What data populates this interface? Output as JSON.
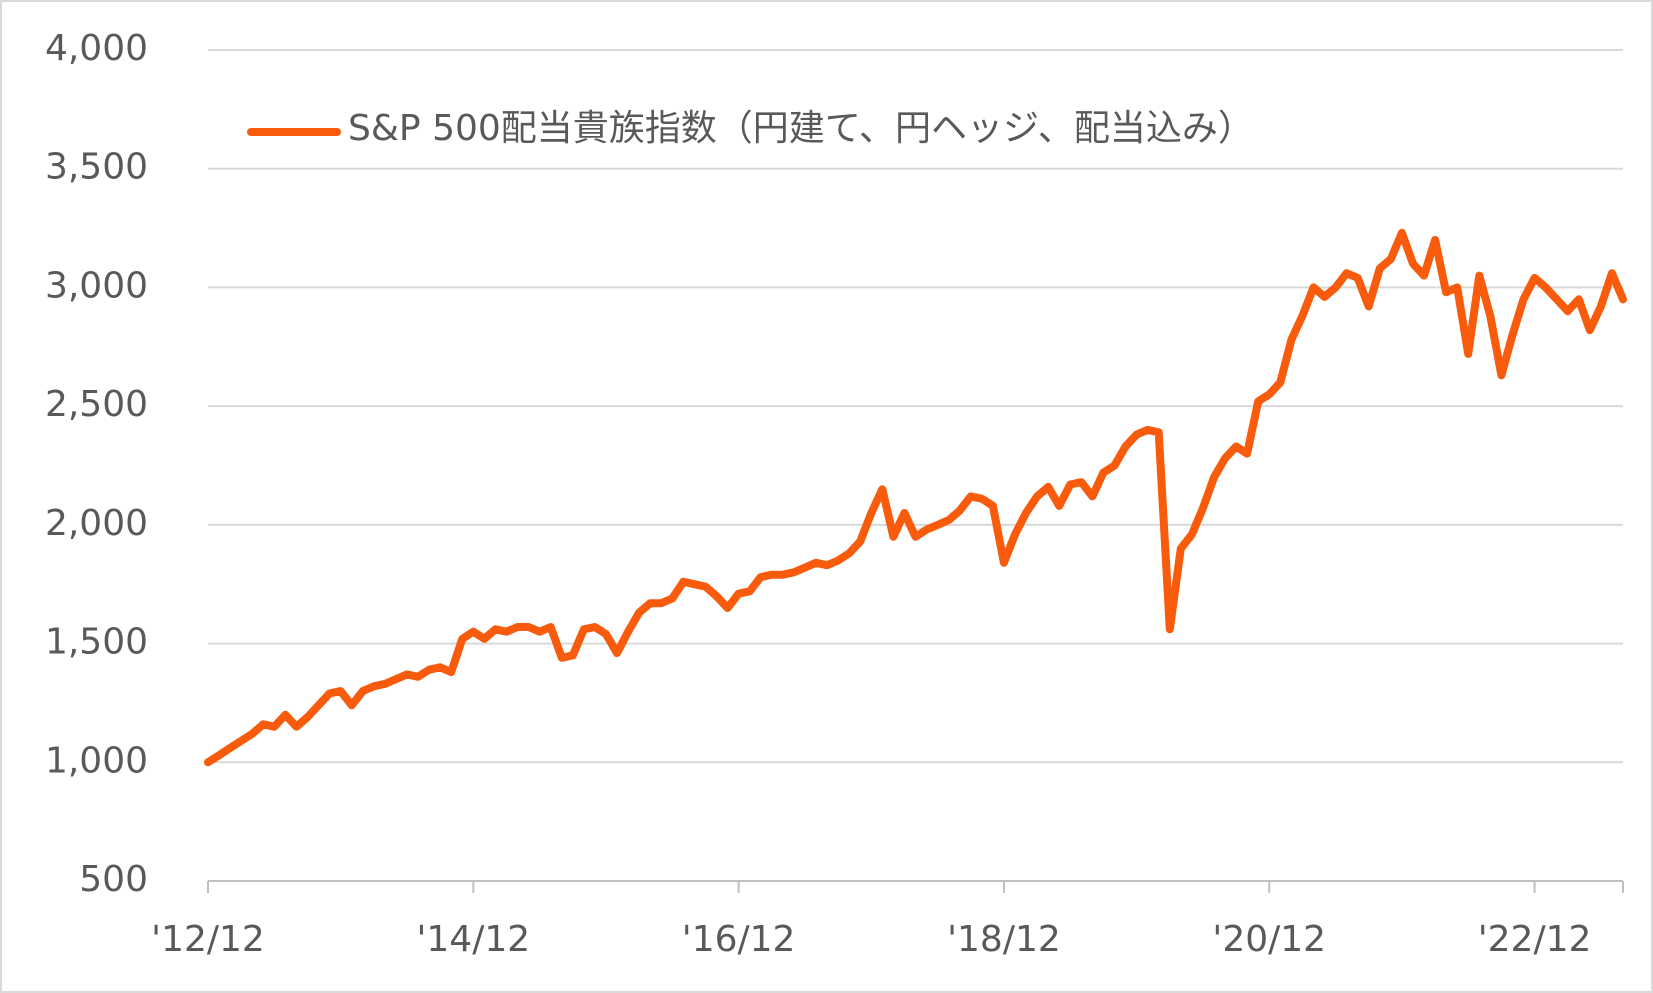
{
  "chart_data": {
    "type": "line",
    "categories": [
      "'12/12",
      null,
      null,
      null,
      null,
      null,
      null,
      null,
      null,
      null,
      null,
      null,
      null,
      null,
      null,
      null,
      null,
      null,
      null,
      null,
      null,
      null,
      null,
      null,
      "'14/12",
      null,
      null,
      null,
      null,
      null,
      null,
      null,
      null,
      null,
      null,
      null,
      null,
      null,
      null,
      null,
      null,
      null,
      null,
      null,
      null,
      null,
      null,
      null,
      "'16/12",
      null,
      null,
      null,
      null,
      null,
      null,
      null,
      null,
      null,
      null,
      null,
      null,
      null,
      null,
      null,
      null,
      null,
      null,
      null,
      null,
      null,
      null,
      null,
      "'18/12",
      null,
      null,
      null,
      null,
      null,
      null,
      null,
      null,
      null,
      null,
      null,
      null,
      null,
      null,
      null,
      null,
      null,
      null,
      null,
      null,
      null,
      null,
      null,
      "'20/12",
      null,
      null,
      null,
      null,
      null,
      null,
      null,
      null,
      null,
      null,
      null,
      null,
      null,
      null,
      null,
      null,
      null,
      null,
      null,
      null,
      null,
      null,
      null,
      "'22/12",
      null,
      null,
      null,
      null,
      null,
      null,
      null,
      null
    ],
    "series": [
      {
        "name": "S&P 500配当貴族指数（円建て、円ヘッジ、配当込み）",
        "color": "#f95b0c",
        "values": [
          1000,
          1030,
          1060,
          1090,
          1120,
          1160,
          1150,
          1200,
          1150,
          1190,
          1240,
          1290,
          1300,
          1240,
          1300,
          1320,
          1330,
          1350,
          1370,
          1360,
          1390,
          1400,
          1380,
          1520,
          1550,
          1520,
          1560,
          1550,
          1570,
          1570,
          1550,
          1570,
          1440,
          1450,
          1560,
          1570,
          1540,
          1460,
          1550,
          1630,
          1670,
          1670,
          1690,
          1760,
          1750,
          1740,
          1700,
          1650,
          1710,
          1720,
          1780,
          1790,
          1790,
          1800,
          1820,
          1840,
          1830,
          1850,
          1880,
          1930,
          2050,
          2150,
          1950,
          2050,
          1950,
          1980,
          2000,
          2020,
          2060,
          2120,
          2110,
          2080,
          1840,
          1960,
          2050,
          2120,
          2160,
          2080,
          2170,
          2180,
          2120,
          2220,
          2250,
          2330,
          2380,
          2400,
          2390,
          1560,
          1900,
          1960,
          2070,
          2200,
          2280,
          2330,
          2300,
          2520,
          2550,
          2600,
          2780,
          2880,
          3000,
          2960,
          3000,
          3060,
          3040,
          2920,
          3080,
          3120,
          3230,
          3100,
          3050,
          3200,
          2980,
          3000,
          2720,
          3050,
          2880,
          2630,
          2800,
          2950,
          3040,
          3000,
          2950,
          2900,
          2950,
          2820,
          2920,
          3060,
          2950
        ]
      }
    ],
    "ylim": [
      500,
      4000
    ],
    "yticks": [
      {
        "value": 500,
        "label": "500"
      },
      {
        "value": 1000,
        "label": "1,000"
      },
      {
        "value": 1500,
        "label": "1,500"
      },
      {
        "value": 2000,
        "label": "2,000"
      },
      {
        "value": 2500,
        "label": "2,500"
      },
      {
        "value": 3000,
        "label": "3,000"
      },
      {
        "value": 3500,
        "label": "3,500"
      },
      {
        "value": 4000,
        "label": "4,000"
      }
    ],
    "grid": true,
    "legend": "top-left"
  }
}
